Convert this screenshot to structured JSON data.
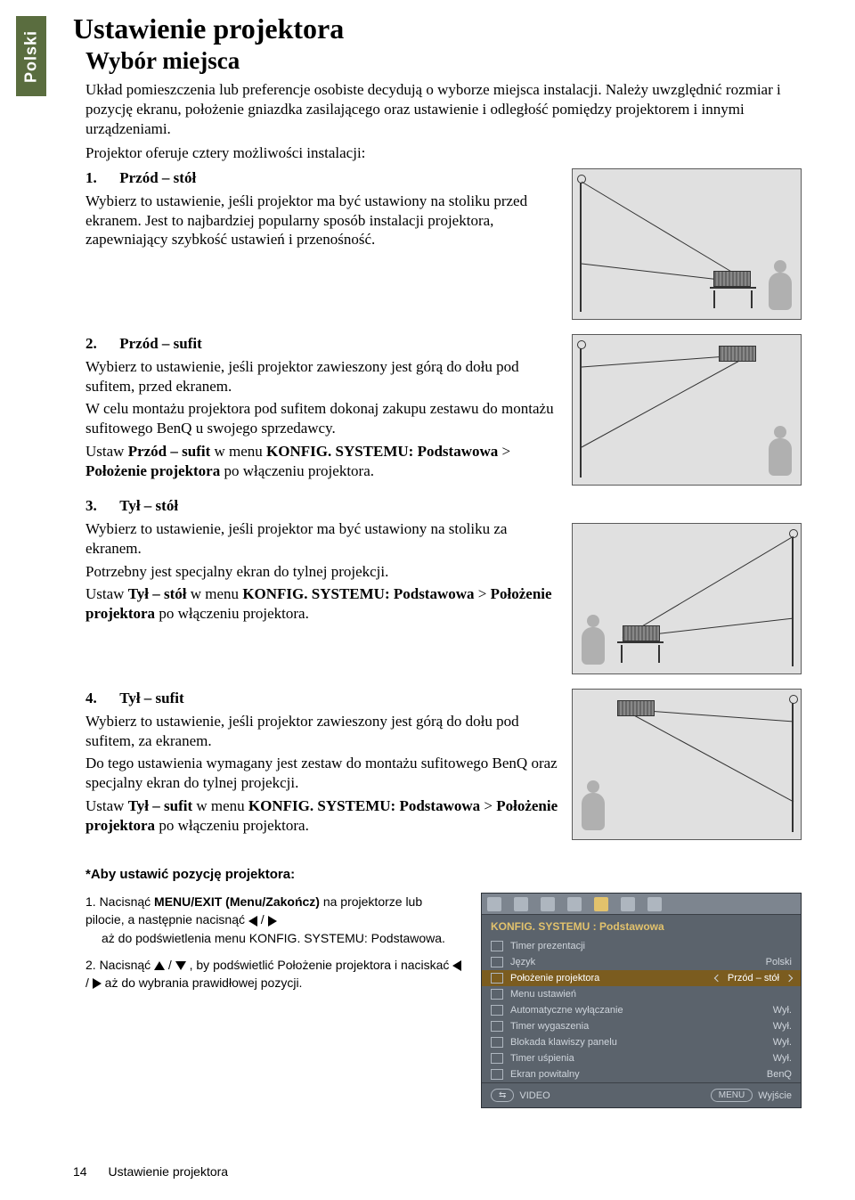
{
  "side_tab": "Polski",
  "title": "Ustawienie projektora",
  "subtitle": "Wybór miejsca",
  "intro": {
    "p1": "Układ pomieszczenia lub preferencje osobiste decydują o wyborze miejsca instalacji. Należy uwzględnić rozmiar i pozycję ekranu, położenie gniazdka zasilającego oraz ustawienie i odległość pomiędzy projektorem i innymi urządzeniami.",
    "p2": "Projektor oferuje cztery możliwości instalacji:"
  },
  "opts": {
    "o1": {
      "num": "1.",
      "title": "Przód – stół",
      "body": "Wybierz to ustawienie, jeśli projektor ma być ustawiony na stoliku przed ekranem. Jest to najbardziej popularny sposób instalacji projektora, zapewniający szybkość ustawień i przenośność."
    },
    "o2": {
      "num": "2.",
      "title": "Przód – sufit",
      "body1": "Wybierz to ustawienie, jeśli projektor zawieszony jest górą do dołu pod sufitem, przed ekranem.",
      "body2": "W celu montażu projektora pod sufitem dokonaj zakupu zestawu do montażu sufitowego BenQ u swojego sprzedawcy.",
      "body3a": "Ustaw ",
      "body3b": "Przód – sufit",
      "body3c": " w menu ",
      "body3d": "KONFIG. SYSTEMU: Podstawowa",
      "body3e": " > ",
      "body3f": "Położenie projektora",
      "body3g": " po włączeniu projektora."
    },
    "o3": {
      "num": "3.",
      "title": "Tył – stół",
      "body1": "Wybierz to ustawienie, jeśli projektor ma być ustawiony na stoliku za ekranem.",
      "body2": "Potrzebny jest specjalny ekran do tylnej projekcji.",
      "body3a": "Ustaw ",
      "body3b": "Tył – stół",
      "body3c": " w menu ",
      "body3d": "KONFIG. SYSTEMU: Podstawowa",
      "body3e": " > ",
      "body3f": "Położenie projektora",
      "body3g": " po włączeniu projektora."
    },
    "o4": {
      "num": "4.",
      "title": "Tył – sufit",
      "body1": "Wybierz to ustawienie, jeśli projektor zawieszony jest górą do dołu pod sufitem, za ekranem.",
      "body2": "Do tego ustawienia wymagany jest zestaw do montażu sufitowego BenQ oraz specjalny ekran do tylnej projekcji.",
      "body3a": "Ustaw ",
      "body3b": "Tył – sufit",
      "body3c": " w menu ",
      "body3d": "KONFIG. SYSTEMU: Podstawowa",
      "body3e": " > ",
      "body3f": "Położenie projektora",
      "body3g": " po włączeniu projektora."
    }
  },
  "setpos_title": "*Aby ustawić pozycję projektora:",
  "steps": {
    "s1a": "1. Nacisnąć ",
    "s1b": "MENU/EXIT (Menu/Zakończ)",
    "s1c": " na projektorze lub pilocie, a następnie nacisnąć ",
    "s1d": " aż do podświetlenia menu KONFIG. SYSTEMU: Podstawowa.",
    "s2a": "2. Nacisnąć ",
    "s2b": " , by podświetlić Położenie projektora i naciskać ",
    "s2c": " aż do wybrania prawidłowej pozycji."
  },
  "osd": {
    "title": "KONFIG. SYSTEMU : Podstawowa",
    "rows": [
      {
        "label": "Timer prezentacji",
        "val": ""
      },
      {
        "label": "Język",
        "val": "Polski"
      },
      {
        "label": "Położenie projektora",
        "val": "Przód – stół",
        "hl": true
      },
      {
        "label": "Menu ustawień",
        "val": ""
      },
      {
        "label": "Automatyczne wyłączanie",
        "val": "Wył."
      },
      {
        "label": "Timer wygaszenia",
        "val": "Wył."
      },
      {
        "label": "Blokada klawiszy panelu",
        "val": "Wył."
      },
      {
        "label": "Timer uśpienia",
        "val": "Wył."
      },
      {
        "label": "Ekran powitalny",
        "val": "BenQ"
      }
    ],
    "foot_left": "VIDEO",
    "foot_right_pill": "MENU",
    "foot_right_text": "Wyjście"
  },
  "footer": {
    "page": "14",
    "label": "Ustawienie projektora"
  },
  "colors": {
    "tab_bg": "#5a6d3f",
    "fig_bg": "#e0e0e0",
    "fig_border": "#5a5a5a",
    "osd_bg": "#5b636c",
    "osd_accent": "#e2c26c",
    "osd_hl": "#7b5c1f",
    "osd_text": "#cfd5dc"
  }
}
